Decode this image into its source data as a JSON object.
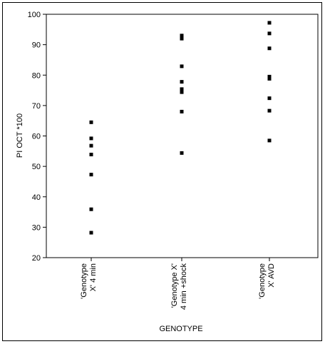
{
  "chart_data": {
    "type": "scatter",
    "xlabel": "GENOTYPE",
    "ylabel": "PI OCT *100",
    "ylim": [
      20,
      100
    ],
    "yticks": [
      "20",
      "30",
      "40",
      "50",
      "60",
      "70",
      "80",
      "90",
      "100"
    ],
    "categories": [
      [
        "'Genotype",
        "X' 4 min"
      ],
      [
        "'Genotype X'",
        "4 min +shock"
      ],
      [
        "'Genotype",
        "X' AVD"
      ]
    ],
    "series": [
      {
        "values": [
          [
            0,
            64.5
          ],
          [
            0,
            59.2
          ],
          [
            0,
            56.8
          ],
          [
            0,
            53.9
          ],
          [
            0,
            47.3
          ],
          [
            0,
            35.9
          ],
          [
            0,
            28.2
          ],
          [
            1,
            93.0
          ],
          [
            1,
            92.0
          ],
          [
            1,
            82.9
          ],
          [
            1,
            77.8
          ],
          [
            1,
            75.4
          ],
          [
            1,
            74.4
          ],
          [
            1,
            68.0
          ],
          [
            1,
            54.4
          ],
          [
            2,
            97.2
          ],
          [
            2,
            93.7
          ],
          [
            2,
            88.8
          ],
          [
            2,
            79.5
          ],
          [
            2,
            78.8
          ],
          [
            2,
            72.4
          ],
          [
            2,
            68.3
          ],
          [
            2,
            58.5
          ]
        ]
      }
    ],
    "grid": false,
    "legend": "none",
    "marker_color": "#000000"
  }
}
